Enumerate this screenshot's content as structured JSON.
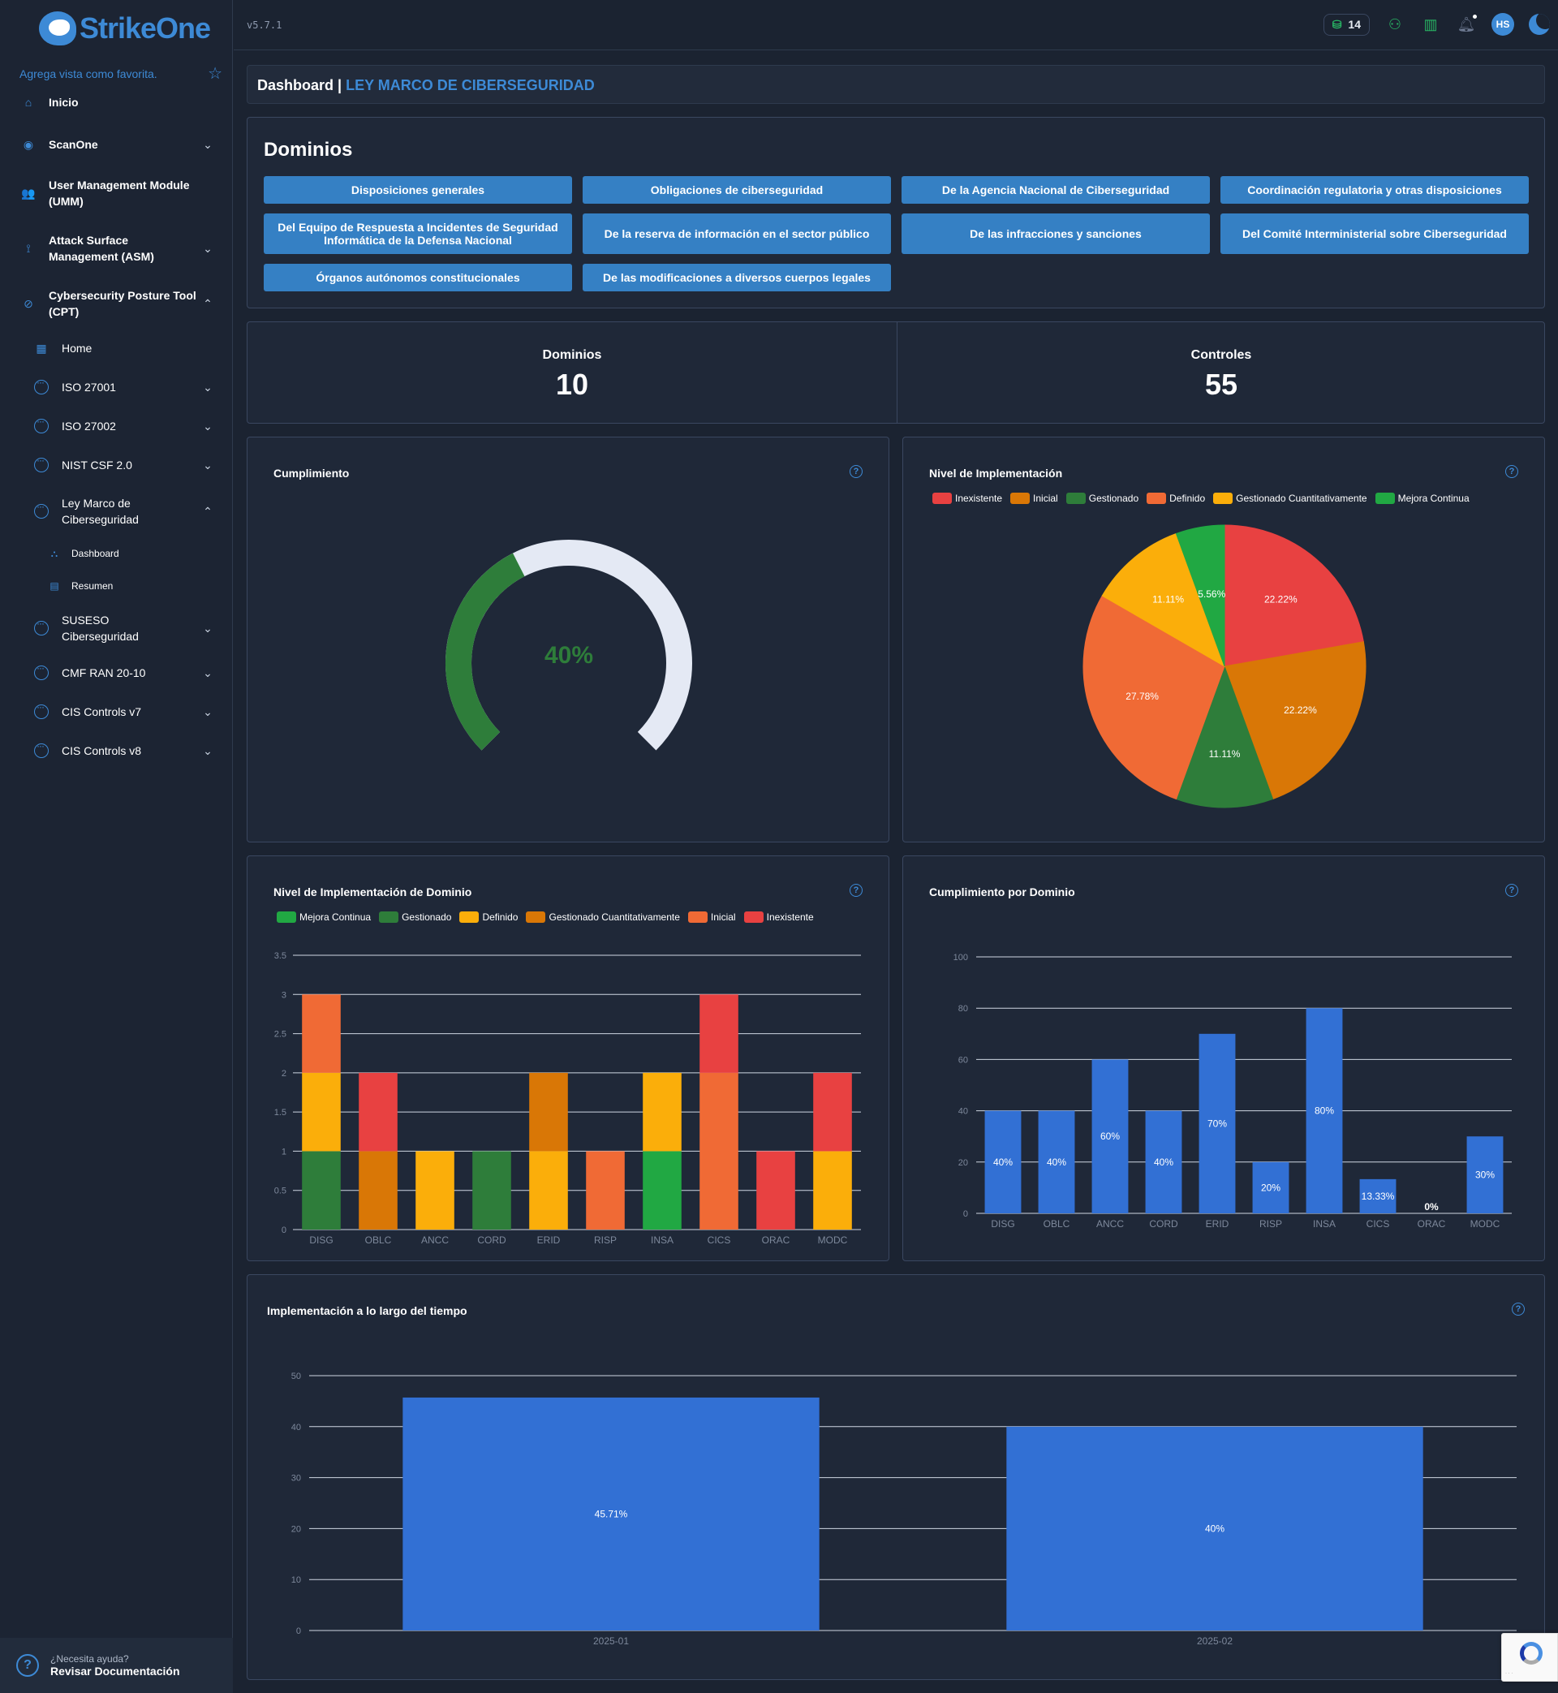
{
  "app": {
    "name": "StrikeOne",
    "version": "v5.7.1"
  },
  "sidebar": {
    "favorite_text": "Agrega vista como favorita.",
    "items": [
      {
        "label": "Inicio"
      },
      {
        "label": "ScanOne"
      },
      {
        "label": "User Management Module (UMM)"
      },
      {
        "label": "Attack Surface Management (ASM)"
      },
      {
        "label": "Cybersecurity Posture Tool (CPT)"
      },
      {
        "label": "Home"
      },
      {
        "label": "ISO 27001"
      },
      {
        "label": "ISO 27002"
      },
      {
        "label": "NIST CSF 2.0"
      },
      {
        "label": "Ley Marco de Ciberseguridad"
      },
      {
        "label": "Dashboard"
      },
      {
        "label": "Resumen"
      },
      {
        "label": "SUSESO Ciberseguridad"
      },
      {
        "label": "CMF RAN 20-10"
      },
      {
        "label": "CIS Controls v7"
      },
      {
        "label": "CIS Controls v8"
      }
    ],
    "help": {
      "small": "¿Necesita ayuda?",
      "big": "Revisar Documentación"
    }
  },
  "topbar": {
    "coins": "14",
    "avatar": "HS"
  },
  "breadcrumb": {
    "root": "Dashboard |",
    "current": "LEY MARCO DE CIBERSEGURIDAD"
  },
  "domains": {
    "title": "Dominios",
    "buttons": [
      "Disposiciones generales",
      "Obligaciones de ciberseguridad",
      "De la Agencia Nacional de Ciberseguridad",
      "Coordinación regulatoria y otras disposiciones",
      "Del Equipo de Respuesta a Incidentes de Seguridad Informática de la Defensa Nacional",
      "De la reserva de información en el sector público",
      "De las infracciones y sanciones",
      "Del Comité Interministerial sobre Ciberseguridad",
      "Órganos autónomos constitucionales",
      "De las modificaciones a diversos cuerpos legales"
    ]
  },
  "stats": {
    "dominios_label": "Dominios",
    "dominios_value": "10",
    "controles_label": "Controles",
    "controles_value": "55"
  },
  "chart_data": [
    {
      "type": "gauge",
      "title": "Cumplimiento",
      "value": 40,
      "label": "40%",
      "colors": {
        "fill": "#2e7d3a",
        "track": "#e4e9f4"
      }
    },
    {
      "type": "pie",
      "title": "Nivel de Implementación",
      "legend": [
        "Inexistente",
        "Inicial",
        "Gestionado",
        "Definido",
        "Gestionado Cuantitativamente",
        "Mejora Continua"
      ],
      "slices": [
        {
          "name": "Inexistente",
          "value": 22.22,
          "label": "22.22%",
          "color": "#e84141"
        },
        {
          "name": "Inicial",
          "value": 22.22,
          "label": "22.22%",
          "color": "#d97706"
        },
        {
          "name": "Gestionado",
          "value": 11.11,
          "label": "11.11%",
          "color": "#2e7d3a"
        },
        {
          "name": "Definido",
          "value": 27.78,
          "label": "27.78%",
          "color": "#f06a35"
        },
        {
          "name": "Gestionado Cuantitativamente",
          "value": 11.11,
          "label": "11.11%",
          "color": "#fbae0a"
        },
        {
          "name": "Mejora Continua",
          "value": 5.56,
          "label": "5.56%",
          "color": "#21a843"
        }
      ]
    },
    {
      "type": "bar",
      "stacked": true,
      "title": "Nivel de Implementación de Dominio",
      "categories": [
        "DISG",
        "OBLC",
        "ANCC",
        "CORD",
        "ERID",
        "RISP",
        "INSA",
        "CICS",
        "ORAC",
        "MODC"
      ],
      "ylim": [
        0,
        3.5
      ],
      "yticks": [
        "0",
        "0.5",
        "1",
        "1.5",
        "2",
        "2.5",
        "3",
        "3.5"
      ],
      "series": [
        {
          "name": "Mejora Continua",
          "color": "#21a843",
          "values": [
            0,
            0,
            0,
            0,
            0,
            0,
            1,
            0,
            0,
            0
          ]
        },
        {
          "name": "Gestionado",
          "color": "#2e7d3a",
          "values": [
            1,
            0,
            0,
            1,
            0,
            0,
            0,
            0,
            0,
            0
          ]
        },
        {
          "name": "Definido",
          "color": "#fbae0a",
          "values": [
            1,
            0,
            1,
            0,
            1,
            0,
            1,
            0,
            0,
            1
          ]
        },
        {
          "name": "Gestionado Cuantitativamente",
          "color": "#d97706",
          "values": [
            0,
            1,
            0,
            0,
            1,
            0,
            0,
            0,
            0,
            0
          ]
        },
        {
          "name": "Inicial",
          "color": "#f06a35",
          "values": [
            1,
            0,
            0,
            0,
            0,
            1,
            0,
            2,
            0,
            0
          ]
        },
        {
          "name": "Inexistente",
          "color": "#e84141",
          "values": [
            0,
            1,
            0,
            0,
            0,
            0,
            0,
            1,
            1,
            1
          ]
        }
      ]
    },
    {
      "type": "bar",
      "title": "Cumplimiento por Dominio",
      "categories": [
        "DISG",
        "OBLC",
        "ANCC",
        "CORD",
        "ERID",
        "RISP",
        "INSA",
        "CICS",
        "ORAC",
        "MODC"
      ],
      "values": [
        40,
        40,
        60,
        40,
        70,
        20,
        80,
        13.33,
        0,
        30
      ],
      "labels": [
        "40%",
        "40%",
        "60%",
        "40%",
        "70%",
        "20%",
        "80%",
        "13.33%",
        "0%",
        "30%"
      ],
      "ylim": [
        0,
        100
      ],
      "yticks": [
        "0",
        "20",
        "40",
        "60",
        "80",
        "100"
      ],
      "color": "#3270d4"
    },
    {
      "type": "bar",
      "title": "Implementación a lo largo del tiempo",
      "categories": [
        "2025-01",
        "2025-02"
      ],
      "values": [
        45.71,
        40
      ],
      "labels": [
        "45.71%",
        "40%"
      ],
      "ylim": [
        0,
        50
      ],
      "yticks": [
        "0",
        "10",
        "20",
        "30",
        "40",
        "50"
      ],
      "color": "#3270d4"
    }
  ]
}
